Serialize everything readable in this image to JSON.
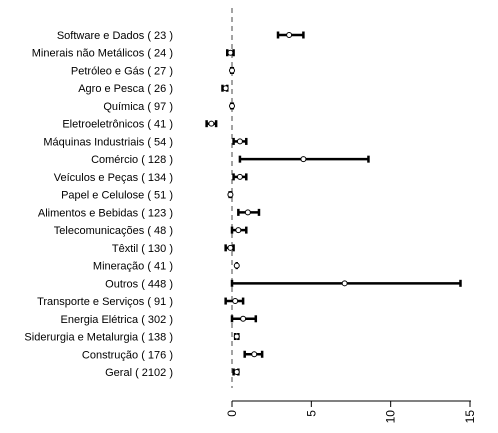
{
  "chart_data": {
    "type": "scatter",
    "subtype": "forest-plot",
    "title": "",
    "xlabel": "",
    "ylabel": "",
    "xlim": [
      0,
      15
    ],
    "xticks": [
      "0",
      "5",
      "10",
      "15"
    ],
    "reference_line": 0,
    "categories": [
      "Software e Dados ( 23 )",
      "Minerais não Metálicos ( 24 )",
      "Petróleo e Gás ( 27 )",
      "Agro e Pesca ( 26 )",
      "Química ( 97 )",
      "Eletroeletrônicos ( 41 )",
      "Máquinas Industriais ( 54 )",
      "Comércio ( 128 )",
      "Veículos e Peças ( 134 )",
      "Papel e Celulose ( 51 )",
      "Alimentos e Bebidas ( 123 )",
      "Telecomunicações ( 48 )",
      "Têxtil ( 130 )",
      "Mineração ( 41 )",
      "Outros ( 448 )",
      "Transporte e Serviços ( 91 )",
      "Energia Elétrica ( 302 )",
      "Siderurgia e Metalurgia ( 138 )",
      "Construção ( 176 )",
      "Geral ( 2102 )"
    ],
    "estimate": [
      3.6,
      -0.1,
      0.0,
      -0.4,
      0.0,
      -1.3,
      0.5,
      4.5,
      0.5,
      -0.1,
      1.0,
      0.4,
      -0.1,
      0.3,
      7.1,
      0.2,
      0.7,
      0.3,
      1.4,
      0.3
    ],
    "lower": [
      2.9,
      -0.3,
      -0.05,
      -0.6,
      -0.05,
      -1.6,
      0.1,
      0.5,
      0.1,
      -0.15,
      0.4,
      0.0,
      -0.4,
      0.3,
      0.0,
      -0.4,
      0.0,
      0.2,
      0.8,
      0.1
    ],
    "upper": [
      4.5,
      0.1,
      0.05,
      -0.3,
      0.05,
      -1.0,
      0.9,
      8.6,
      0.9,
      -0.05,
      1.7,
      0.9,
      0.1,
      0.3,
      14.4,
      0.7,
      1.5,
      0.4,
      1.9,
      0.4
    ]
  }
}
